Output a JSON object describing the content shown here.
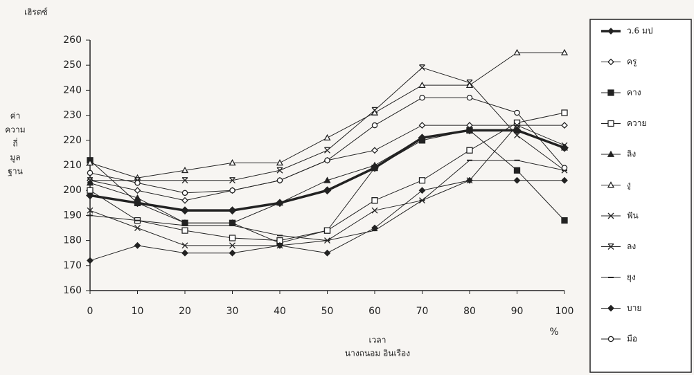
{
  "chart_data": {
    "type": "line",
    "y_label_top": "เฮิรตซ์",
    "y_label_side": [
      "ค่า",
      "ความ",
      "ถี่",
      "มูล",
      "ฐาน"
    ],
    "x_label": "เวลา",
    "x_unit": "%",
    "author": "นางถนอม อินเรือง",
    "x": [
      0,
      10,
      20,
      30,
      40,
      50,
      60,
      70,
      80,
      90,
      100
    ],
    "xlim": [
      0,
      100
    ],
    "xticks": [
      0,
      10,
      20,
      30,
      40,
      50,
      60,
      70,
      80,
      90,
      100
    ],
    "ylim": [
      160,
      260
    ],
    "yticks": [
      160,
      170,
      180,
      190,
      200,
      210,
      220,
      230,
      240,
      250,
      260
    ],
    "grid": false,
    "legend": "right",
    "series": [
      {
        "name": "ว.6 มป",
        "color": "#222",
        "marker": "diamond-filled",
        "line_width": 3.5,
        "values": [
          198,
          195,
          192,
          192,
          195,
          200,
          209,
          221,
          224,
          224,
          217
        ]
      },
      {
        "name": "ครู",
        "color": "#222",
        "marker": "diamond-open",
        "line_width": 1,
        "values": [
          204,
          200,
          196,
          200,
          204,
          212,
          216,
          226,
          226,
          226,
          226
        ]
      },
      {
        "name": "คาง",
        "color": "#222",
        "marker": "square-filled",
        "line_width": 1,
        "values": [
          212,
          195,
          187,
          187,
          179,
          184,
          209,
          220,
          224,
          208,
          188
        ]
      },
      {
        "name": "ควาย",
        "color": "#222",
        "marker": "square-open",
        "line_width": 1,
        "values": [
          200,
          188,
          184,
          181,
          180,
          184,
          196,
          204,
          216,
          227,
          231
        ]
      },
      {
        "name": "ลิง",
        "color": "#222",
        "marker": "triangle-filled",
        "line_width": 1,
        "values": [
          203,
          197,
          187,
          187,
          195,
          204,
          210,
          221,
          224,
          224,
          217
        ]
      },
      {
        "name": "งู",
        "color": "#222",
        "marker": "triangle-open",
        "line_width": 1,
        "values": [
          211,
          205,
          208,
          211,
          211,
          221,
          231,
          242,
          242,
          255,
          255
        ]
      },
      {
        "name": "ฟัน",
        "color": "#222",
        "marker": "cross",
        "line_width": 1,
        "values": [
          192,
          185,
          178,
          178,
          178,
          180,
          192,
          196,
          204,
          226,
          218
        ]
      },
      {
        "name": "ลง",
        "color": "#222",
        "marker": "star",
        "line_width": 1,
        "values": [
          204,
          204,
          204,
          204,
          208,
          216,
          232,
          249,
          243,
          222,
          208
        ]
      },
      {
        "name": "ยุง",
        "color": "#222",
        "marker": "dash",
        "line_width": 1,
        "values": [
          190,
          188,
          186,
          186,
          182,
          180,
          184,
          196,
          212,
          212,
          208
        ]
      },
      {
        "name": "บาย",
        "color": "#222",
        "marker": "diamond-filled",
        "line_width": 1,
        "values": [
          172,
          178,
          175,
          175,
          178,
          175,
          185,
          200,
          204,
          204,
          204
        ]
      },
      {
        "name": "มือ",
        "color": "#222",
        "marker": "circle-open",
        "line_width": 1,
        "values": [
          207,
          203,
          199,
          200,
          204,
          212,
          226,
          237,
          237,
          231,
          209
        ]
      }
    ]
  }
}
